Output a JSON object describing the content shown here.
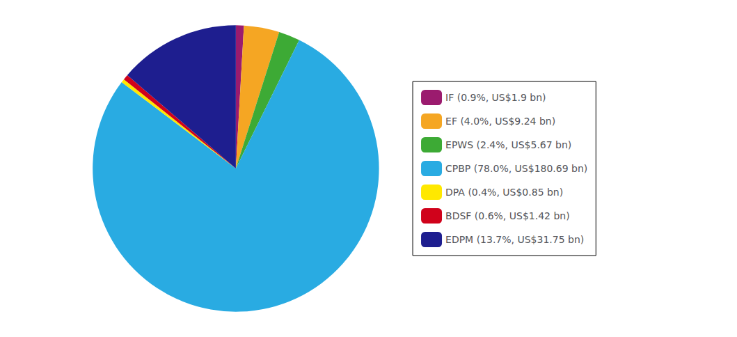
{
  "chart_data": {
    "type": "pie",
    "categories": [
      "IF (0.9%, US$1.9 bn)",
      "EF (4.0%, US$9.24 bn)",
      "EPWS (2.4%, US$5.67 bn)",
      "CPBP (78.0%, US$180.69 bn)",
      "DPA (0.4%, US$0.85 bn)",
      "BDSF (0.6%, US$1.42 bn)",
      "EDPM (13.7%, US$31.75 bn)"
    ],
    "values": [
      0.9,
      4.0,
      2.4,
      78.0,
      0.4,
      0.6,
      13.7
    ],
    "colors": [
      "#9B1B6E",
      "#F5A623",
      "#3DAA35",
      "#29ABE2",
      "#FFE800",
      "#D0021B",
      "#1E1E8F"
    ],
    "legend": "right"
  }
}
